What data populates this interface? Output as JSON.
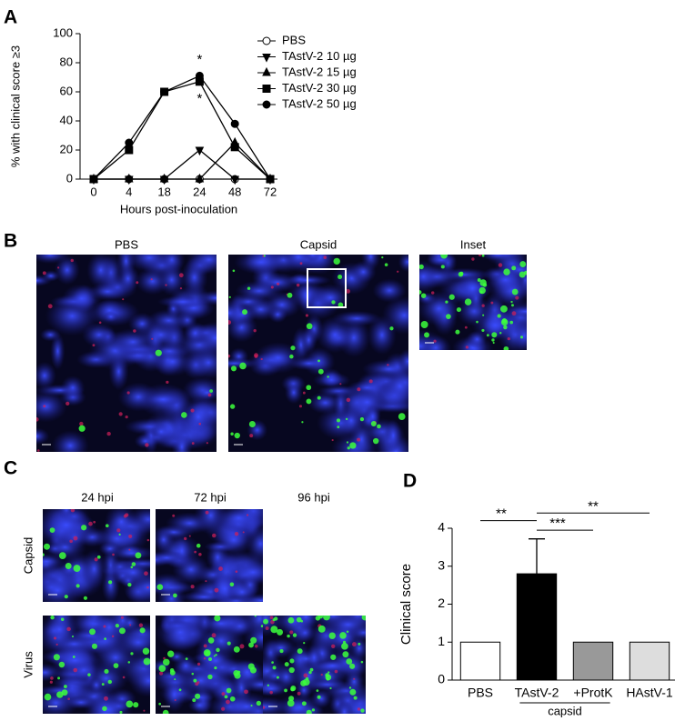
{
  "panel_labels": [
    "A",
    "B",
    "C",
    "D"
  ],
  "panel_b": {
    "captions": [
      "PBS",
      "Capsid",
      "Inset"
    ]
  },
  "panel_c": {
    "columns": [
      "24 hpi",
      "72 hpi",
      "96 hpi"
    ],
    "rows": [
      "Capsid",
      "Virus"
    ]
  },
  "chart_data": [
    {
      "type": "line",
      "xlabel": "Hours post-inoculation",
      "ylabel": "% with clinical score ≥3",
      "categories": [
        "0",
        "4",
        "18",
        "24",
        "48",
        "72"
      ],
      "ylim": [
        0,
        100
      ],
      "yticks": [
        0,
        20,
        40,
        60,
        80,
        100
      ],
      "legend": "right",
      "series": [
        {
          "name": "PBS",
          "color": "#000000",
          "marker": "circle-open",
          "values": [
            0,
            0,
            0,
            0,
            0,
            0
          ]
        },
        {
          "name": "TAstV-2 10 µg",
          "color": "#000000",
          "marker": "triangle-down",
          "values": [
            0,
            0,
            0,
            20,
            0,
            0
          ]
        },
        {
          "name": "TAstV-2 15 µg",
          "color": "#000000",
          "marker": "triangle-up",
          "values": [
            0,
            0,
            0,
            0,
            25,
            0
          ]
        },
        {
          "name": "TAstV-2 30 µg",
          "color": "#000000",
          "marker": "square",
          "values": [
            0,
            20,
            60,
            67,
            22,
            0
          ]
        },
        {
          "name": "TAstV-2 50 µg",
          "color": "#000000",
          "marker": "circle",
          "values": [
            0,
            25,
            60,
            71,
            38,
            0
          ]
        }
      ],
      "annotations": [
        {
          "text": "*",
          "x": 3,
          "y": 82
        },
        {
          "text": "*",
          "x": 3,
          "y": 55
        }
      ]
    },
    {
      "type": "bar",
      "ylabel": "Clinical score",
      "categories": [
        "PBS",
        "TAstV-2",
        "+ProtK",
        "HAstV-1"
      ],
      "values": [
        1,
        2.8,
        1,
        1
      ],
      "errors": [
        null,
        0.92,
        null,
        null
      ],
      "colors": [
        "#ffffff",
        "#000000",
        "#999999",
        "#dddddd"
      ],
      "ylim": [
        0,
        4
      ],
      "yticks": [
        0,
        1,
        2,
        3,
        4
      ],
      "group_label": {
        "text": "capsid",
        "from": 1,
        "to": 2
      },
      "significance": [
        {
          "from": 0,
          "to": 1,
          "label": "**",
          "y": 4.2
        },
        {
          "from": 1,
          "to": 3,
          "label": "**",
          "y": 4.4
        },
        {
          "from": 1,
          "to": 2,
          "label": "***",
          "y": 3.95
        }
      ]
    }
  ]
}
